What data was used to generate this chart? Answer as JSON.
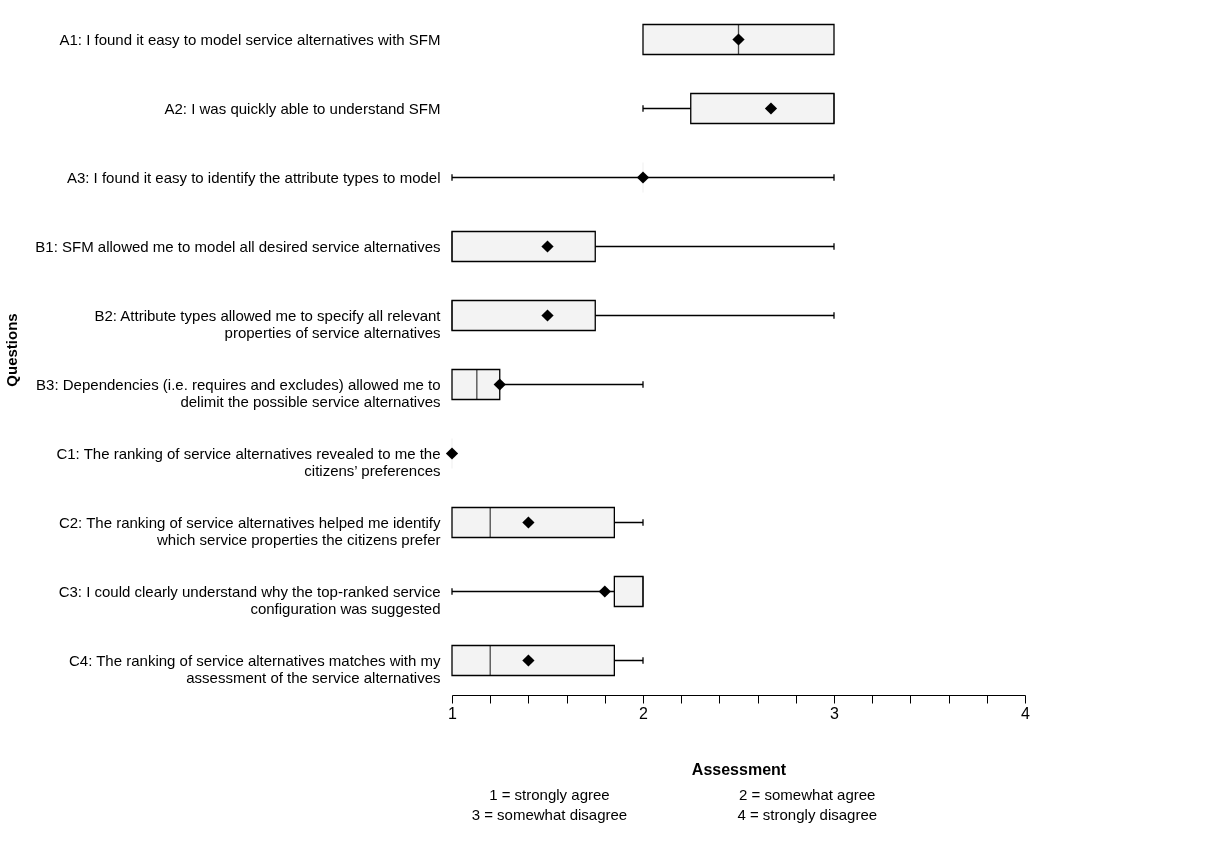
{
  "chart_data": {
    "type": "box",
    "orientation": "horizontal",
    "xlabel": "Assessment",
    "ylabel": "Questions",
    "categories": [
      "A1: I found it easy to model service alternatives with SFM",
      "A2: I was quickly able to understand SFM",
      "A3: I found it easy to identify the attribute types to model",
      "B1: SFM allowed me to model all desired service alternatives",
      "B2: Attribute types allowed me to specify all relevant properties of service alternatives",
      "B3: Dependencies (i.e. requires and excludes) allowed me to delimit the possible service alternatives",
      "C1: The ranking of service alternatives revealed to me the citizens’ preferences",
      "C2: The ranking of service alternatives helped me identify which service properties the citizens prefer",
      "C3: I could clearly understand why the top-ranked service configuration was suggested",
      "C4: The ranking of service alternatives matches with my assessment of the service alternatives"
    ],
    "boxes": [
      {
        "low": 2,
        "q1": 2,
        "median": 2.5,
        "q3": 3,
        "high": 3,
        "mean": 2.5
      },
      {
        "low": 2,
        "q1": 2.25,
        "median": 3,
        "q3": 3,
        "high": 3,
        "mean": 2.67
      },
      {
        "low": 1,
        "q1": 2,
        "median": 2,
        "q3": 2,
        "high": 3,
        "mean": 2
      },
      {
        "low": 1,
        "q1": 1,
        "median": 1,
        "q3": 1.75,
        "high": 3,
        "mean": 1.5
      },
      {
        "low": 1,
        "q1": 1,
        "median": 1,
        "q3": 1.75,
        "high": 3,
        "mean": 1.5
      },
      {
        "low": 1,
        "q1": 1,
        "median": 1.13,
        "q3": 1.25,
        "high": 2,
        "mean": 1.25
      },
      {
        "low": 1,
        "q1": 1,
        "median": 1,
        "q3": 1,
        "high": 1,
        "mean": 1
      },
      {
        "low": 1,
        "q1": 1,
        "median": 1.2,
        "q3": 1.85,
        "high": 2,
        "mean": 1.4
      },
      {
        "low": 1,
        "q1": 1.85,
        "median": 2,
        "q3": 2,
        "high": 2,
        "mean": 1.8
      },
      {
        "low": 1,
        "q1": 1,
        "median": 1.2,
        "q3": 1.85,
        "high": 2,
        "mean": 1.4
      }
    ],
    "color": "#f3f3f3",
    "marker": "diamond",
    "grid": false,
    "xlim": [
      1,
      4
    ],
    "xticks": [
      1,
      {
        "value": 1.2,
        "label": null
      },
      {
        "value": 1.4,
        "label": null
      },
      {
        "value": 1.6,
        "label": null
      },
      {
        "value": 1.8,
        "label": null
      },
      2,
      {
        "value": 2.2,
        "label": null
      },
      {
        "value": 2.4,
        "label": null
      },
      {
        "value": 2.6,
        "label": null
      },
      {
        "value": 2.8,
        "label": null
      },
      3,
      {
        "value": 3.2,
        "label": null
      },
      {
        "value": 3.4,
        "label": null
      },
      {
        "value": 3.6,
        "label": null
      },
      {
        "value": 3.8,
        "label": null
      },
      4
    ],
    "annotations": [
      "1 = strongly agree",
      "2 = somewhat agree",
      "3 = somewhat disagree",
      "4 = strongly disagree"
    ]
  }
}
